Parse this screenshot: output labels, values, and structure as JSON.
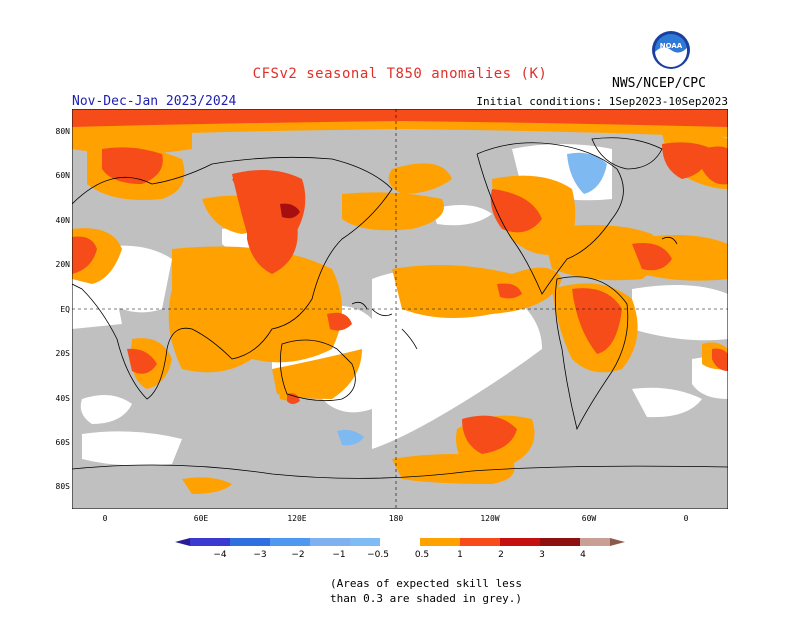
{
  "title": "CFSv2 seasonal T850 anomalies (K)",
  "subtitle": "Nov-Dec-Jan 2023/2024",
  "initial_conditions": "Initial conditions: 1Sep2023-10Sep2023",
  "agency": "NWS/NCEP/CPC",
  "logo_text": "NOAA",
  "lat_labels": [
    "80N",
    "60N",
    "40N",
    "20N",
    "EQ",
    "20S",
    "40S",
    "60S",
    "80S"
  ],
  "lon_labels": [
    "0",
    "60E",
    "120E",
    "180",
    "120W",
    "60W",
    "0"
  ],
  "colorbar": {
    "ticks": [
      "−4",
      "−3",
      "−2",
      "−1",
      "−0.5",
      "0.5",
      "1",
      "2",
      "3",
      "4"
    ],
    "colors": [
      "#2a1c94",
      "#3a3ad0",
      "#2f6fe0",
      "#4d98f0",
      "#7fbcf5",
      "#ffffff",
      "#ffa100",
      "#f54c1a",
      "#c41010",
      "#8e0f0f",
      "#c99e94",
      "#8c5a4a"
    ]
  },
  "note": [
    "(Areas of expected skill less",
    "than 0.3 are shaded in grey.)"
  ],
  "colors": {
    "grey": "#c0c0c0",
    "orange": "#ffa100",
    "red": "#f54c1a",
    "darkred": "#a50f0f",
    "lightblue": "#7fb9f2",
    "title": "#e0302a",
    "subtitle": "#2020b0"
  }
}
